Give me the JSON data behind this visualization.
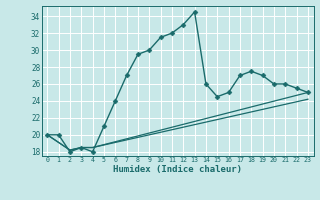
{
  "xlabel": "Humidex (Indice chaleur)",
  "ylabel": "",
  "bg_color": "#c8e8e8",
  "grid_color": "#ffffff",
  "line_color": "#1a6b6b",
  "xlim": [
    -0.5,
    23.5
  ],
  "ylim": [
    17.5,
    35.2
  ],
  "xticks": [
    0,
    1,
    2,
    3,
    4,
    5,
    6,
    7,
    8,
    9,
    10,
    11,
    12,
    13,
    14,
    15,
    16,
    17,
    18,
    19,
    20,
    21,
    22,
    23
  ],
  "yticks": [
    18,
    20,
    22,
    24,
    26,
    28,
    30,
    32,
    34
  ],
  "series": [
    {
      "x": [
        0,
        1,
        2,
        3,
        4,
        5,
        6,
        7,
        8,
        9,
        10,
        11,
        12,
        13,
        14,
        15,
        16,
        17,
        18,
        19,
        20,
        21,
        22,
        23
      ],
      "y": [
        20.0,
        20.0,
        18.0,
        18.5,
        18.0,
        21.0,
        24.0,
        27.0,
        29.5,
        30.0,
        31.5,
        32.0,
        33.0,
        34.5,
        26.0,
        24.5,
        25.0,
        27.0,
        27.5,
        27.0,
        26.0,
        26.0,
        25.5,
        25.0
      ],
      "marker": "D",
      "marker_size": 2.5,
      "linewidth": 1.0
    },
    {
      "x": [
        0,
        2,
        3,
        4,
        23
      ],
      "y": [
        20.0,
        18.2,
        18.5,
        18.5,
        25.0
      ],
      "marker": null,
      "marker_size": 0,
      "linewidth": 0.9
    },
    {
      "x": [
        0,
        2,
        3,
        4,
        23
      ],
      "y": [
        20.0,
        18.2,
        18.5,
        18.5,
        24.2
      ],
      "marker": null,
      "marker_size": 0,
      "linewidth": 0.9
    }
  ]
}
